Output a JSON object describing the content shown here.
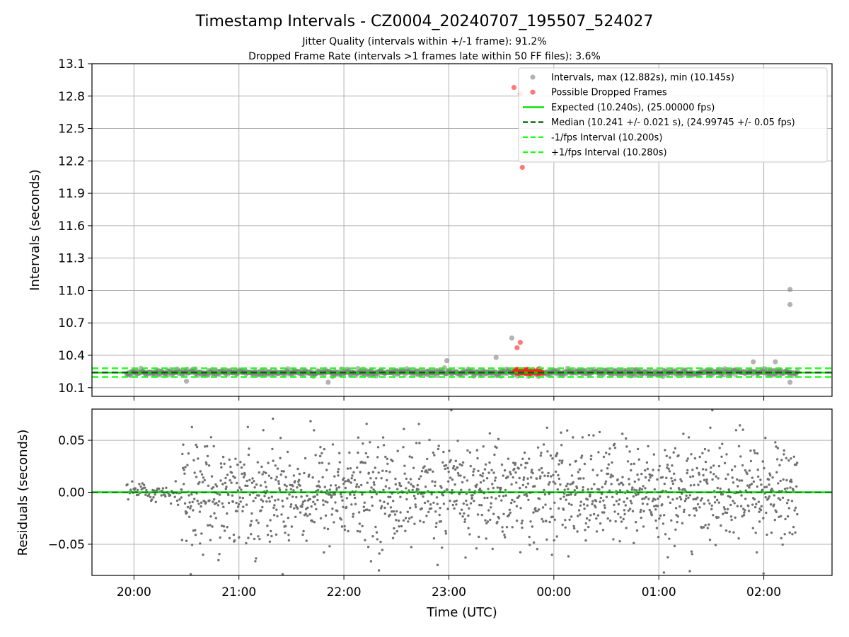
{
  "chart_data": [
    {
      "type": "scatter",
      "title": "Timestamp Intervals - CZ0004_20240707_195507_524027",
      "subtitle_lines": [
        "Jitter Quality (intervals within +/-1 frame): 91.2%",
        "Dropped Frame Rate (intervals >1 frames late within 50 FF files): 3.6%"
      ],
      "xlabel": "",
      "ylabel": "Intervals (seconds)",
      "ylim": [
        10.02,
        13.1
      ],
      "x_unit": "hours (UTC, continuing past midnight)",
      "xlim": [
        19.6,
        26.65
      ],
      "yticks": [
        {
          "value": 10.1,
          "label": "10.1"
        },
        {
          "value": 10.4,
          "label": "10.4"
        },
        {
          "value": 10.7,
          "label": "10.7"
        },
        {
          "value": 11.0,
          "label": "11.0"
        },
        {
          "value": 11.3,
          "label": "11.3"
        },
        {
          "value": 11.6,
          "label": "11.6"
        },
        {
          "value": 11.9,
          "label": "11.9"
        },
        {
          "value": 12.2,
          "label": "12.2"
        },
        {
          "value": 12.5,
          "label": "12.5"
        },
        {
          "value": 12.8,
          "label": "12.8"
        },
        {
          "value": 13.1,
          "label": "13.1"
        }
      ],
      "grid": true,
      "legend_position": "top-right",
      "x_range_of_data": [
        19.93,
        26.32
      ],
      "expected": 10.24,
      "median": 10.241,
      "minus_interval": 10.2,
      "plus_interval": 10.28,
      "series": [
        {
          "name": "Intervals, max (12.882s), min (10.145s)",
          "kind": "scatter",
          "color": "#808080",
          "typical_value": 10.24,
          "typical_spread": 0.03,
          "outliers": [
            {
              "x": 26.25,
              "y": 11.01
            },
            {
              "x": 26.25,
              "y": 10.87
            },
            {
              "x": 23.6,
              "y": 10.56
            },
            {
              "x": 23.45,
              "y": 10.38
            },
            {
              "x": 20.5,
              "y": 10.16
            },
            {
              "x": 21.85,
              "y": 10.15
            },
            {
              "x": 26.25,
              "y": 10.15
            },
            {
              "x": 22.98,
              "y": 10.35
            },
            {
              "x": 25.9,
              "y": 10.34
            },
            {
              "x": 26.11,
              "y": 10.34
            }
          ]
        },
        {
          "name": "Possible Dropped Frames",
          "kind": "scatter",
          "color": "#ff2020",
          "points": [
            {
              "x": 23.62,
              "y": 12.88
            },
            {
              "x": 23.68,
              "y": 12.82
            },
            {
              "x": 23.7,
              "y": 12.14
            },
            {
              "x": 23.65,
              "y": 10.47
            },
            {
              "x": 23.68,
              "y": 10.52
            }
          ],
          "cluster_range_x": [
            23.62,
            23.9
          ],
          "cluster_y": 10.25
        },
        {
          "name": "Expected (10.240s), (25.00000 fps)",
          "kind": "line",
          "value": 10.24,
          "color": "#00e000",
          "style": "solid"
        },
        {
          "name": "Median (10.241 +/- 0.021 s), (24.99745 +/- 0.05 fps)",
          "kind": "line",
          "value": 10.241,
          "color": "#006400",
          "style": "dashed"
        },
        {
          "name": "-1/fps Interval (10.200s)",
          "kind": "line",
          "value": 10.2,
          "color": "#1aff1a",
          "style": "dashed"
        },
        {
          "name": "+1/fps Interval (10.280s)",
          "kind": "line",
          "value": 10.28,
          "color": "#1aff1a",
          "style": "dashed"
        }
      ]
    },
    {
      "type": "scatter",
      "xlabel": "Time (UTC)",
      "ylabel": "Residuals (seconds)",
      "ylim": [
        -0.08,
        0.08
      ],
      "xlim": [
        19.6,
        26.65
      ],
      "yticks": [
        {
          "value": 0.05,
          "label": "0.05"
        },
        {
          "value": 0.0,
          "label": "0.00"
        },
        {
          "value": -0.05,
          "label": "−0.05"
        }
      ],
      "xticks": [
        {
          "value": 20,
          "label": "20:00"
        },
        {
          "value": 21,
          "label": "21:00"
        },
        {
          "value": 22,
          "label": "22:00"
        },
        {
          "value": 23,
          "label": "23:00"
        },
        {
          "value": 24,
          "label": "00:00"
        },
        {
          "value": 25,
          "label": "01:00"
        },
        {
          "value": 26,
          "label": "02:00"
        }
      ],
      "grid": true,
      "zero_line_color": "#00e000",
      "series": [
        {
          "name": "",
          "color": "#707070",
          "early_range_x": [
            19.93,
            20.45
          ],
          "early_spread": 0.005,
          "main_range_x": [
            20.45,
            26.32
          ],
          "main_spread": 0.025
        }
      ]
    }
  ],
  "colors": {
    "grid": "#b0b0b0",
    "gray_points": "#808080",
    "red_points": "#ff2020",
    "expected": "#00e000",
    "median": "#006400",
    "interval": "#1aff1a"
  }
}
